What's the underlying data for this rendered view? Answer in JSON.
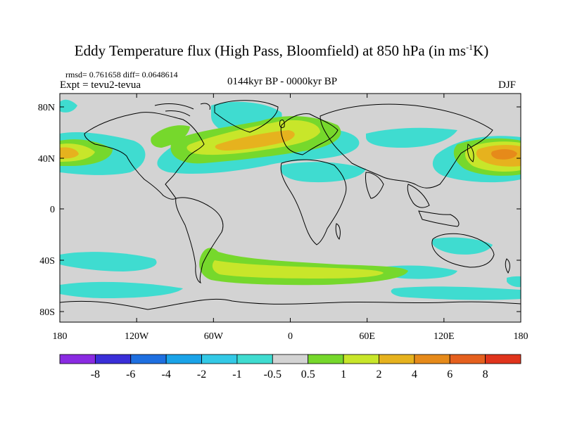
{
  "title": {
    "main": "Eddy Temperature flux (High Pass, Bloomfield) at 850 hPa (in ms",
    "sup": "-1",
    "end": "K)"
  },
  "stats": "rmsd= 0.761658 diff= 0.0648614",
  "expt": "Expt = tevu2-tevua",
  "period": "0144kyr BP - 0000kyr BP",
  "season": "DJF",
  "map": {
    "lat_labels": [
      "80N",
      "40N",
      "0",
      "40S",
      "80S"
    ],
    "lon_labels": [
      "180",
      "120W",
      "60W",
      "0",
      "60E",
      "120E",
      "180"
    ],
    "background_color": "#d3d3d3"
  },
  "colorbar": {
    "labels": [
      "-8",
      "-6",
      "-4",
      "-2",
      "-1",
      "-0.5",
      "0.5",
      "1",
      "2",
      "4",
      "6",
      "8"
    ],
    "colors": [
      "#8a2be2",
      "#3a2fd8",
      "#1e6fe0",
      "#1aa3e8",
      "#33c9e6",
      "#3fdcd0",
      "#d3d3d3",
      "#76d82c",
      "#c8e62a",
      "#e6b21e",
      "#e68a1a",
      "#e5601e",
      "#e0341c"
    ]
  }
}
